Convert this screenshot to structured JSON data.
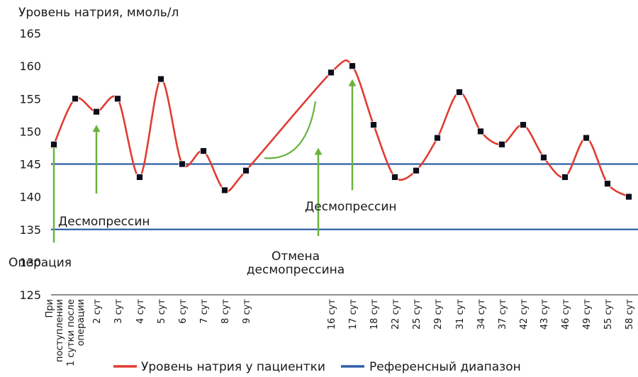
{
  "chart_data": {
    "type": "line",
    "ylabel": "Уровень натрия, ммоль/л",
    "ylim": [
      125,
      165
    ],
    "yticks": [
      125,
      130,
      135,
      140,
      145,
      150,
      155,
      160,
      165
    ],
    "categories": [
      [
        "При",
        "поступлении"
      ],
      [
        "1 сутки после",
        "операции"
      ],
      [
        "2 сут"
      ],
      [
        "3 сут"
      ],
      [
        "4 сут"
      ],
      [
        "5 сут"
      ],
      [
        "6 сут"
      ],
      [
        "7 сут"
      ],
      [
        "8 сут"
      ],
      [
        "9 сут"
      ],
      [
        "16 сут"
      ],
      [
        "17 сут"
      ],
      [
        "18 сут"
      ],
      [
        "22 сут"
      ],
      [
        "25 сут"
      ],
      [
        "29 сут"
      ],
      [
        "31 сут"
      ],
      [
        "34 сут"
      ],
      [
        "37 сут"
      ],
      [
        "42 сут"
      ],
      [
        "43 сут"
      ],
      [
        "46 сут"
      ],
      [
        "49 сут"
      ],
      [
        "55 сут"
      ],
      [
        "58 сут"
      ]
    ],
    "series": [
      {
        "name": "Уровень натрия у пациентки",
        "color": "#e03c31",
        "values": [
          148,
          155,
          153,
          155,
          143,
          158,
          145,
          147,
          141,
          144,
          159,
          160,
          151,
          143,
          144,
          149,
          156,
          150,
          148,
          151,
          146,
          143,
          149,
          142,
          140
        ]
      }
    ],
    "reference": {
      "name": "Референсный диапазон",
      "color": "#2f5fa8",
      "values": [
        145,
        135
      ]
    },
    "annotations": [
      {
        "text": [
          "Операция"
        ],
        "category": 0,
        "arrow_from": 133,
        "arrow_to": 148.5
      },
      {
        "text": [
          "Десмопрессин"
        ],
        "category": 2,
        "arrow_from": 140.5,
        "arrow_to": 151
      },
      {
        "text": [
          "Отмена",
          "десмопрессина"
        ],
        "category": 9.85,
        "arrow_from": 134,
        "arrow_to": 147.5
      },
      {
        "text": [
          "Десмопрессин"
        ],
        "category": 11,
        "arrow_from": 141,
        "arrow_to": 158
      }
    ],
    "annotation_color": "#6ab23e",
    "legend_position": "bottom",
    "grid": false
  }
}
